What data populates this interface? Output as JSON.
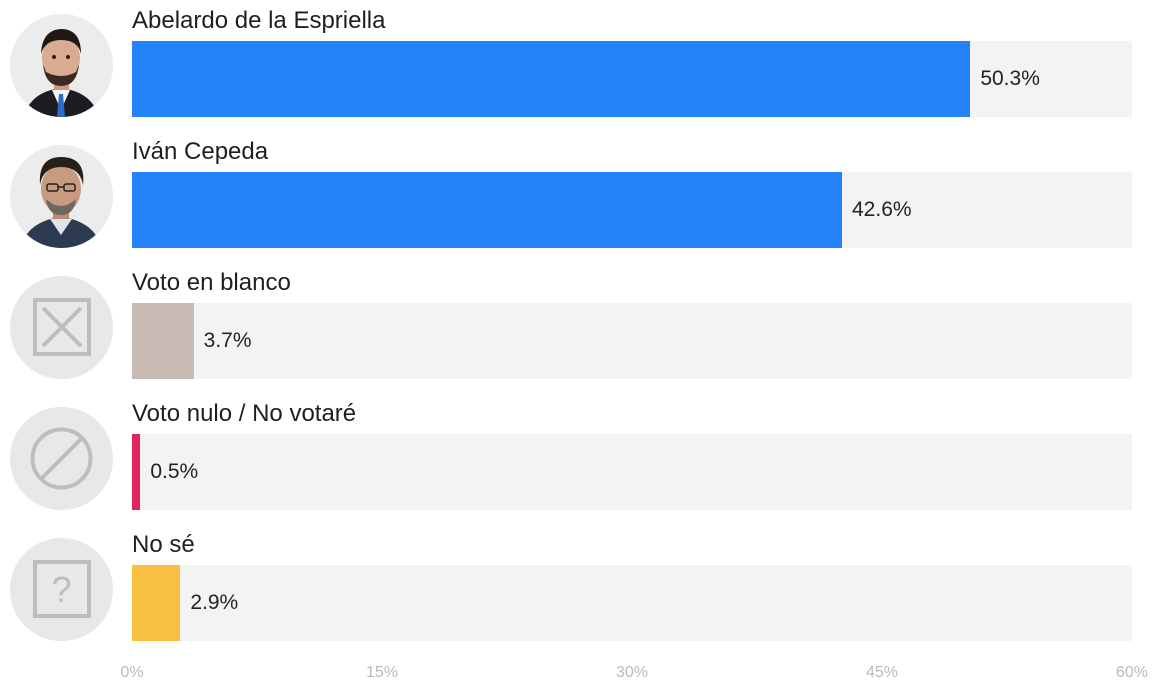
{
  "chart_data": {
    "type": "bar",
    "orientation": "horizontal",
    "categories": [
      "Abelardo de la Espriella",
      "Iván Cepeda",
      "Voto en blanco",
      "Voto nulo / No votaré",
      "No sé"
    ],
    "values": [
      50.3,
      42.6,
      3.7,
      0.5,
      2.9
    ],
    "value_labels": [
      "50.3%",
      "42.6%",
      "3.7%",
      "0.5%",
      "2.9%"
    ],
    "colors": [
      "#2483fb",
      "#2483fb",
      "#c7bbb4",
      "#e0245e",
      "#f7c043"
    ],
    "xlim": [
      0,
      60
    ],
    "x_ticks": [
      {
        "value": 0,
        "label": "0%"
      },
      {
        "value": 15,
        "label": "15%"
      },
      {
        "value": 30,
        "label": "30%"
      },
      {
        "value": 45,
        "label": "45%"
      },
      {
        "value": 60,
        "label": "60%"
      }
    ],
    "icons": [
      "candidate-photo-icon",
      "candidate-photo-icon",
      "blank-ballot-icon",
      "null-vote-icon",
      "question-icon"
    ],
    "track_color": "#f3f3f3",
    "grid": false
  }
}
